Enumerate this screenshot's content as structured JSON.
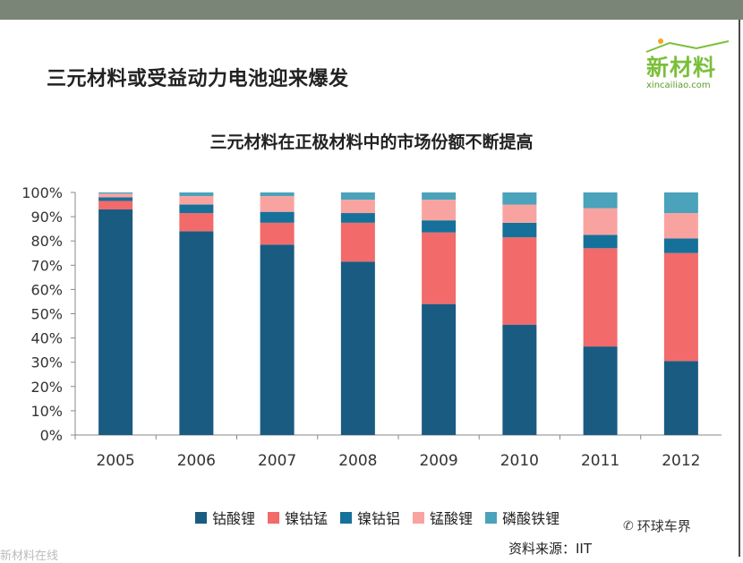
{
  "slide_title": "三元材料或受益动力电池迎来爆发",
  "logo": {
    "main": "新材料",
    "sub": "xincailiao.com"
  },
  "watermark": {
    "icon": "wechat-icon",
    "text": "环球车界"
  },
  "source": "资料来源：IIT",
  "corner_text": "新材料在线",
  "colors": {
    "top_bar": "#7a8578",
    "series": [
      "#1a5b82",
      "#f26a6a",
      "#16719a",
      "#f9a3a0",
      "#4aa2bb"
    ]
  },
  "chart_data": {
    "type": "bar",
    "stacked": true,
    "title": "三元材料在正极材料中的市场份额不断提高",
    "categories": [
      "2005",
      "2006",
      "2007",
      "2008",
      "2009",
      "2010",
      "2011",
      "2012"
    ],
    "yticks": [
      "0%",
      "10%",
      "20%",
      "30%",
      "40%",
      "50%",
      "60%",
      "70%",
      "80%",
      "90%",
      "100%"
    ],
    "ylim": [
      0,
      100
    ],
    "grid": false,
    "legend_position": "bottom",
    "series": [
      {
        "name": "钴酸锂",
        "values": [
          93,
          84,
          78.5,
          71.5,
          54,
          45.5,
          36.5,
          30.5
        ]
      },
      {
        "name": "镍钴锰",
        "values": [
          3.5,
          7.5,
          9,
          16,
          29.5,
          36,
          40.5,
          44.5
        ]
      },
      {
        "name": "镍钴铝",
        "values": [
          1.5,
          3.5,
          4.5,
          4,
          5,
          6,
          5.5,
          6
        ]
      },
      {
        "name": "锰酸锂",
        "values": [
          1.5,
          3.5,
          6.5,
          5.5,
          8.5,
          7.5,
          11,
          10.5
        ]
      },
      {
        "name": "磷酸铁锂",
        "values": [
          0.5,
          1.5,
          1.5,
          3,
          3,
          5,
          6.5,
          8.5
        ]
      }
    ]
  }
}
